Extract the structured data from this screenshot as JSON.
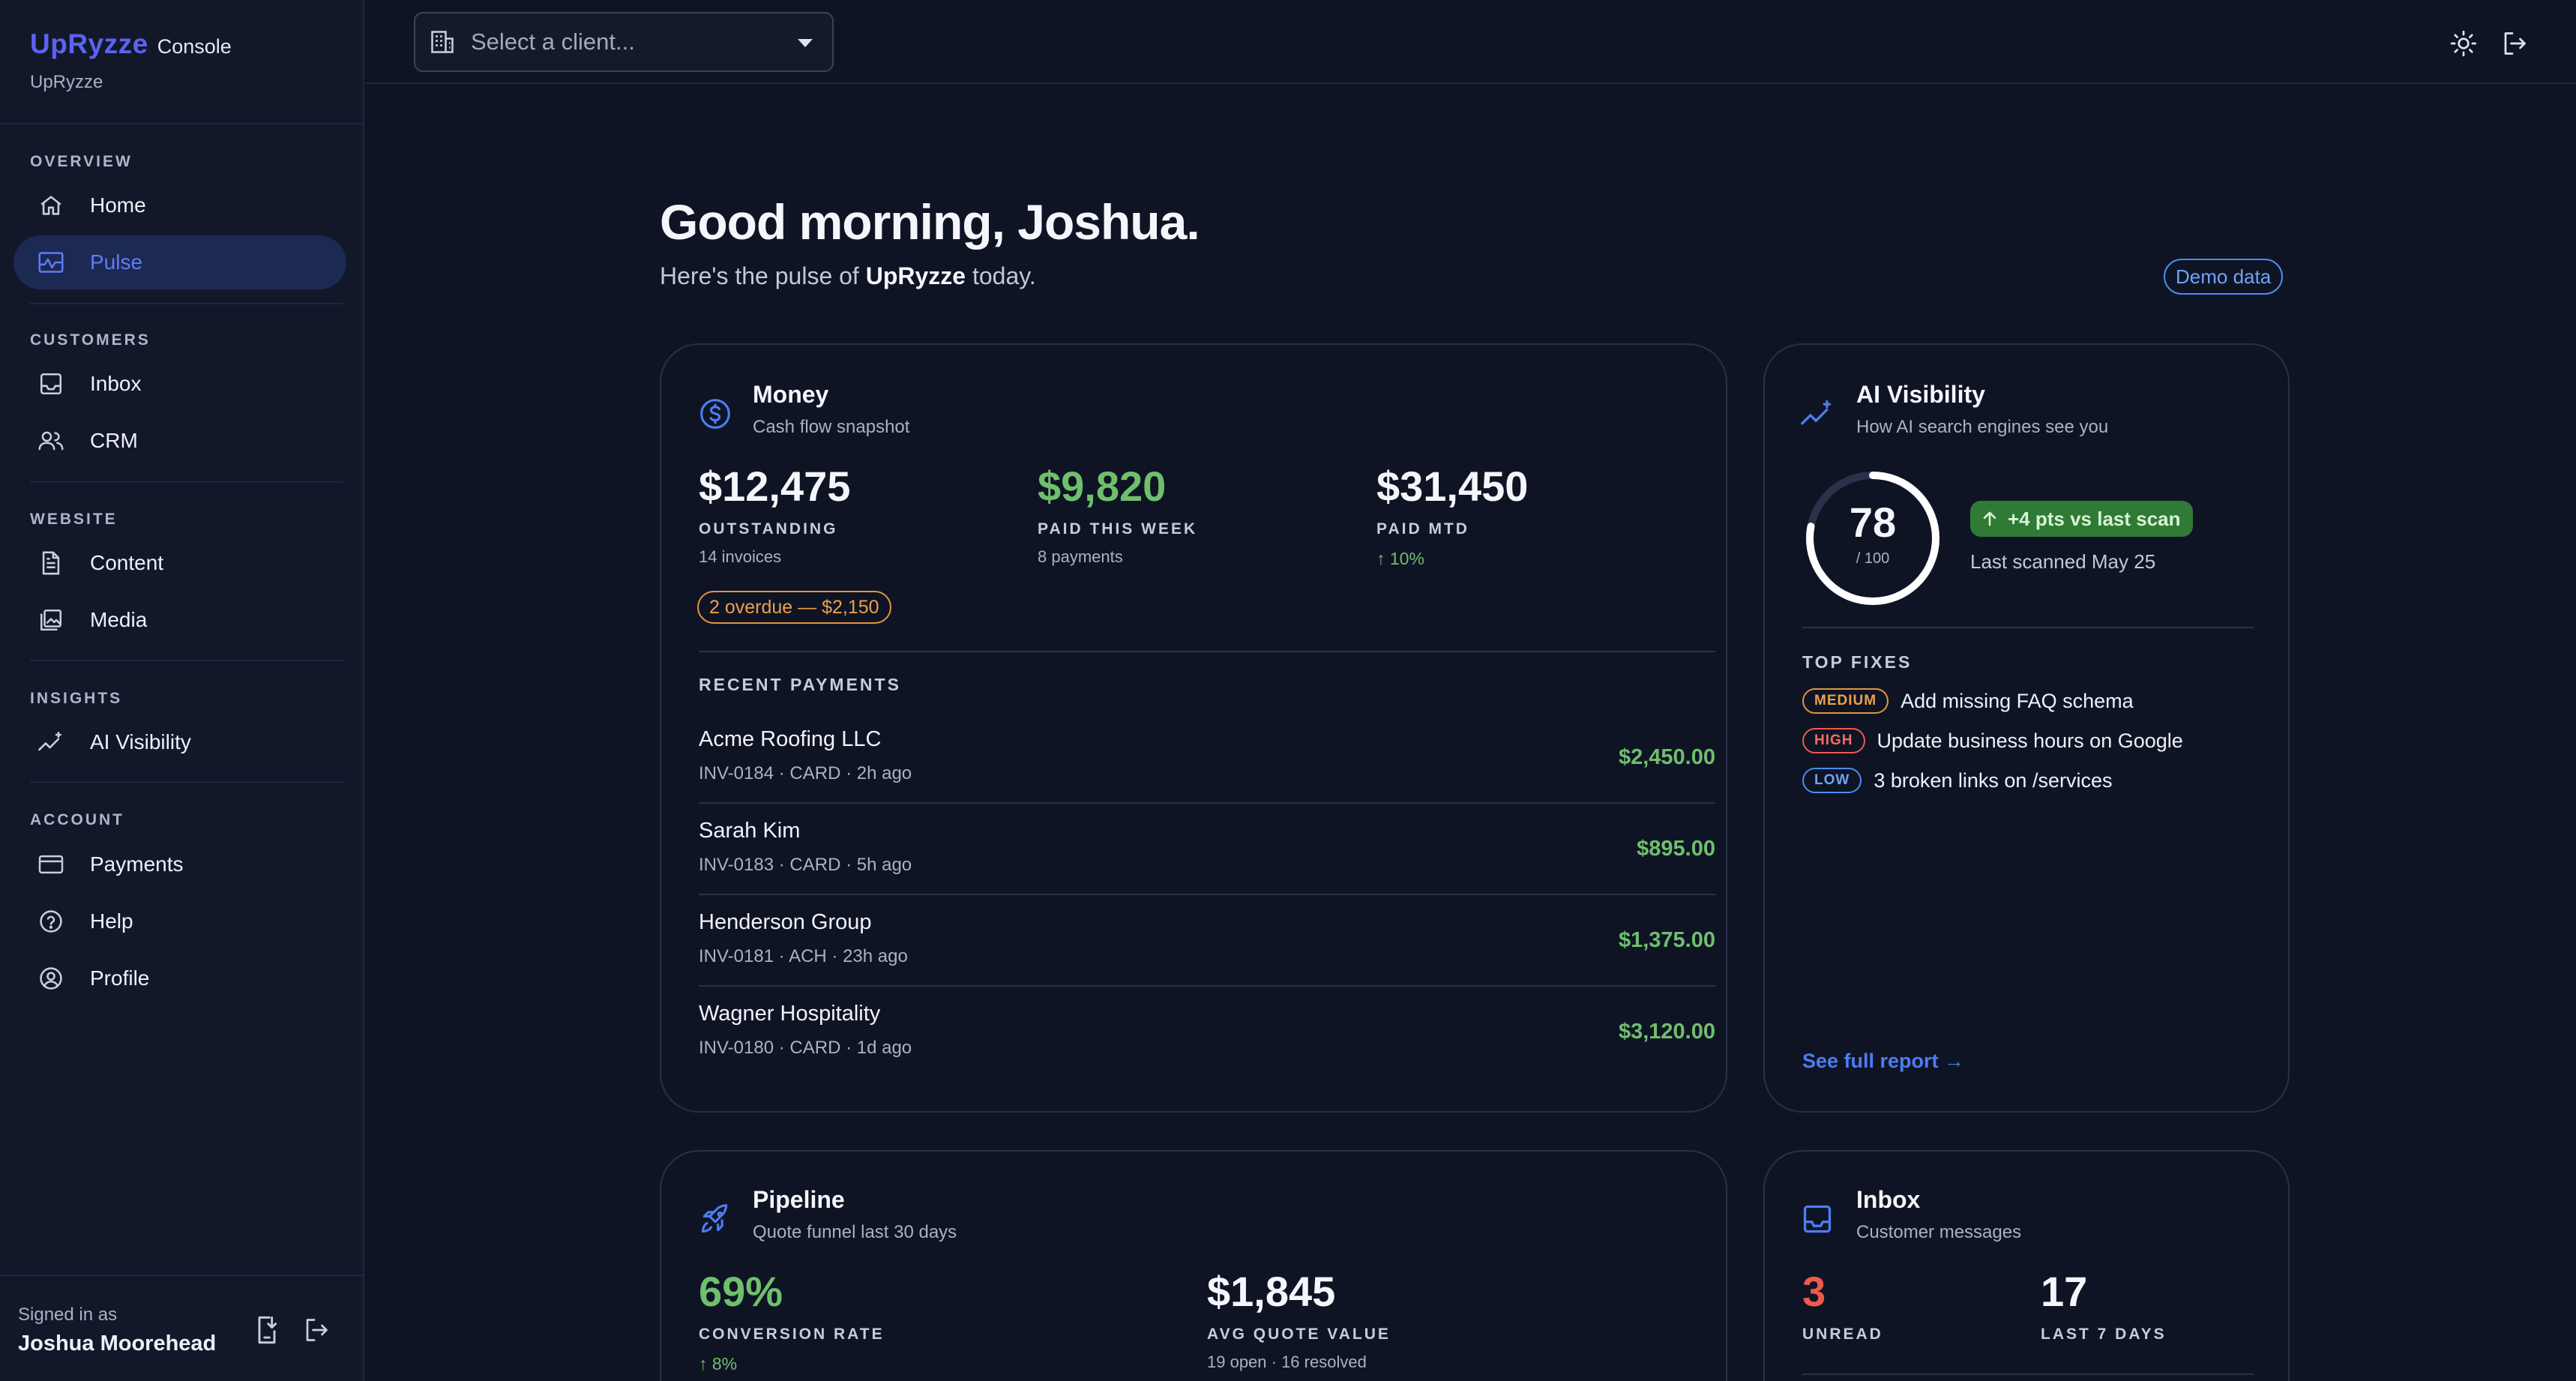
{
  "brand": {
    "name": "UpRyzze",
    "console": "Console",
    "org": "UpRyzze"
  },
  "nav": {
    "sections": [
      {
        "label": "OVERVIEW",
        "items": [
          {
            "label": "Home",
            "icon": "home-icon"
          },
          {
            "label": "Pulse",
            "icon": "pulse-icon",
            "active": true
          }
        ]
      },
      {
        "label": "CUSTOMERS",
        "items": [
          {
            "label": "Inbox",
            "icon": "inbox-icon"
          },
          {
            "label": "CRM",
            "icon": "users-icon"
          }
        ]
      },
      {
        "label": "WEBSITE",
        "items": [
          {
            "label": "Content",
            "icon": "document-icon"
          },
          {
            "label": "Media",
            "icon": "image-icon"
          }
        ]
      },
      {
        "label": "INSIGHTS",
        "items": [
          {
            "label": "AI Visibility",
            "icon": "sparkle-chart-icon"
          }
        ]
      },
      {
        "label": "ACCOUNT",
        "items": [
          {
            "label": "Payments",
            "icon": "credit-card-icon"
          },
          {
            "label": "Help",
            "icon": "help-icon"
          },
          {
            "label": "Profile",
            "icon": "profile-icon"
          }
        ]
      }
    ]
  },
  "user": {
    "signed_in_label": "Signed in as",
    "name": "Joshua Moorehead"
  },
  "topbar": {
    "client_placeholder": "Select a client..."
  },
  "header": {
    "greeting": "Good morning, Joshua.",
    "sub_prefix": "Here's the pulse of ",
    "sub_org": "UpRyzze",
    "sub_suffix": " today.",
    "demo_badge": "Demo data"
  },
  "money": {
    "title": "Money",
    "subtitle": "Cash flow snapshot",
    "metrics": [
      {
        "value": "$12,475",
        "label": "OUTSTANDING",
        "sub": "14 invoices"
      },
      {
        "value": "$9,820",
        "label": "PAID THIS WEEK",
        "sub": "8 payments"
      },
      {
        "value": "$31,450",
        "label": "PAID MTD",
        "change": "↑ 10%"
      }
    ],
    "overdue": "2 overdue — $2,150",
    "recent_title": "RECENT PAYMENTS",
    "payments": [
      {
        "name": "Acme Roofing LLC",
        "meta": "INV-0184 · CARD · 2h ago",
        "amount": "$2,450.00"
      },
      {
        "name": "Sarah Kim",
        "meta": "INV-0183 · CARD · 5h ago",
        "amount": "$895.00"
      },
      {
        "name": "Henderson Group",
        "meta": "INV-0181 · ACH · 23h ago",
        "amount": "$1,375.00"
      },
      {
        "name": "Wagner Hospitality",
        "meta": "INV-0180 · CARD · 1d ago",
        "amount": "$3,120.00"
      }
    ]
  },
  "ai_visibility": {
    "title": "AI Visibility",
    "subtitle": "How AI search engines see you",
    "score": "78",
    "score_max": "/ 100",
    "score_fraction": 0.78,
    "change": "+4 pts vs last scan",
    "last_scanned": "Last scanned May 25",
    "fixes_title": "TOP FIXES",
    "fixes": [
      {
        "severity": "MEDIUM",
        "text": "Add missing FAQ schema"
      },
      {
        "severity": "HIGH",
        "text": "Update business hours on Google"
      },
      {
        "severity": "LOW",
        "text": "3 broken links on /services"
      }
    ],
    "report_link": "See full report →"
  },
  "pipeline": {
    "title": "Pipeline",
    "subtitle": "Quote funnel last 30 days",
    "metrics": [
      {
        "value": "69%",
        "label": "CONVERSION RATE",
        "change": "↑ 8%"
      },
      {
        "value": "$1,845",
        "label": "AVG QUOTE VALUE",
        "sub": "19 open · 16 resolved"
      }
    ]
  },
  "inbox": {
    "title": "Inbox",
    "subtitle": "Customer messages",
    "metrics": [
      {
        "value": "3",
        "label": "UNREAD"
      },
      {
        "value": "17",
        "label": "LAST 7 DAYS"
      }
    ]
  },
  "colors": {
    "accent": "#5b63f0",
    "green": "#6fbf6c",
    "red": "#ef5a4d",
    "orange": "#e0963f",
    "blue": "#4c8df2"
  }
}
